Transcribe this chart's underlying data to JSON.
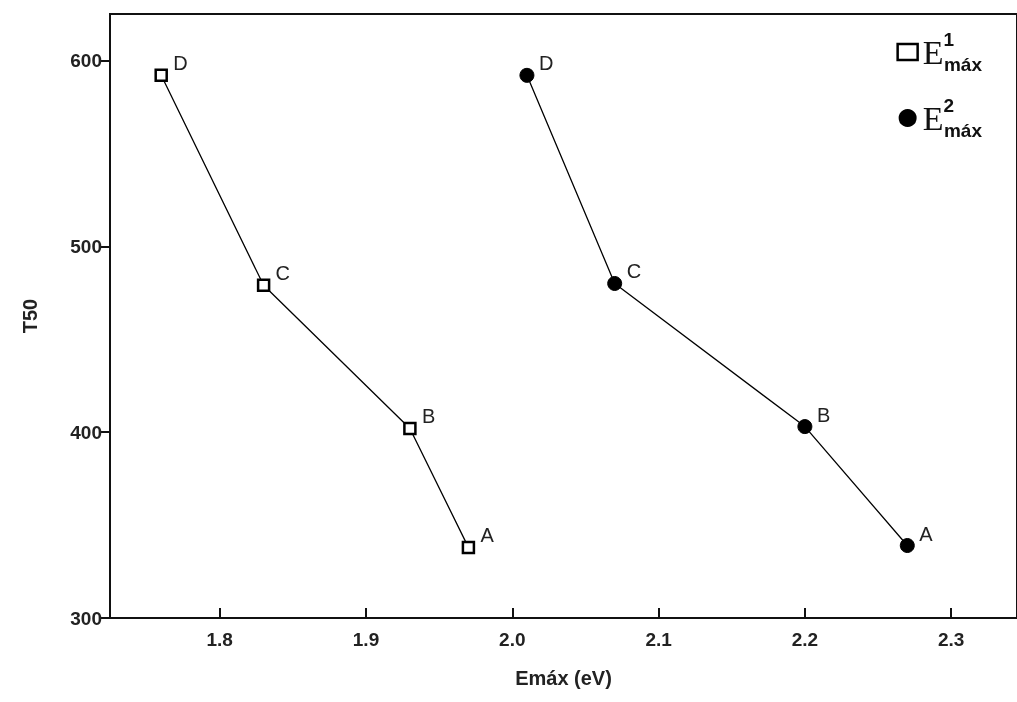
{
  "chart_data": {
    "type": "line",
    "xlabel": "Emáx (eV)",
    "ylabel": "T50",
    "xlim": [
      1.725,
      2.345
    ],
    "xticks": [
      1.8,
      1.9,
      {
        "value": 2.0,
        "label": "2.0"
      },
      2.1,
      2.2,
      2.3
    ],
    "ylim": [
      300,
      625
    ],
    "yticks": [
      300,
      400,
      500,
      600
    ],
    "grid": false,
    "legend": "top right",
    "line_style": "solid",
    "series": [
      {
        "name": "E$^{1}$$_{máx}$",
        "color": "#000000",
        "marker": "square",
        "x": [
          1.76,
          1.83,
          1.93,
          1.97
        ],
        "values": [
          592,
          479,
          402,
          338
        ]
      },
      {
        "name": "E$^{2}$$_{máx}$",
        "color": "#000000",
        "marker": "circle",
        "x": [
          2.01,
          2.07,
          2.2,
          2.27
        ],
        "values": [
          592,
          480,
          403,
          339
        ]
      }
    ],
    "annotations": [
      {
        "text": "D",
        "x": 1.76,
        "y": 592
      },
      {
        "text": "C",
        "x": 1.83,
        "y": 479
      },
      {
        "text": "B",
        "x": 1.93,
        "y": 402
      },
      {
        "text": "A",
        "x": 1.97,
        "y": 338
      },
      {
        "text": "D",
        "x": 2.01,
        "y": 592
      },
      {
        "text": "C",
        "x": 2.07,
        "y": 480
      },
      {
        "text": "B",
        "x": 2.2,
        "y": 403
      },
      {
        "text": "A",
        "x": 2.27,
        "y": 339
      }
    ]
  }
}
